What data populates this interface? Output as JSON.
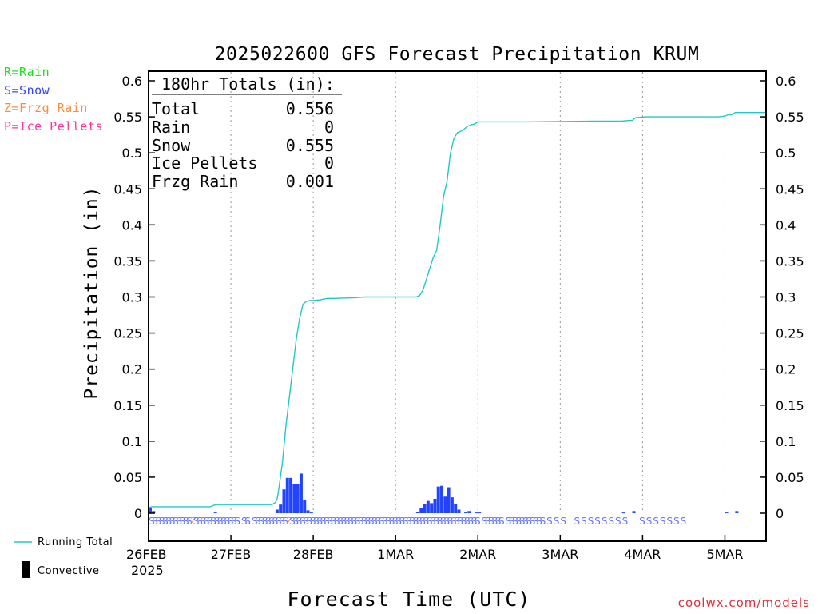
{
  "legend_types": [
    {
      "label": "R=Rain",
      "color": "#22dd22"
    },
    {
      "label": "S=Snow",
      "color": "#3344ff"
    },
    {
      "label": "Z=Frzg Rain",
      "color": "#ff8a3c"
    },
    {
      "label": "P=Ice Pellets",
      "color": "#ff3399"
    }
  ],
  "bottom_legend": {
    "running_total": "Running Total",
    "convective": "Convective"
  },
  "watermark": "coolwx.com/models",
  "totals": {
    "title": "180hr Totals (in):",
    "rows": [
      {
        "label": "Total",
        "value": "0.556"
      },
      {
        "label": "Rain",
        "value": "0"
      },
      {
        "label": "Snow",
        "value": "0.555"
      },
      {
        "label": "Ice Pellets",
        "value": "0"
      },
      {
        "label": "Frzg Rain",
        "value": "0.001"
      }
    ]
  },
  "colors": {
    "running_total": "#22c8c8",
    "snow_bar": "#2244ff",
    "convective": "#000000",
    "snow_marker": "#6677ff",
    "frzg_marker": "#ff8a3c"
  },
  "chart_data": {
    "type": "bar",
    "title": "2025022600 GFS Forecast Precipitation KRUM",
    "xlabel": "Forecast Time (UTC)",
    "ylabel": "Precipitation (in)",
    "ylim": [
      0,
      0.6
    ],
    "xlim": [
      0,
      180
    ],
    "y_ticks": [
      0,
      0.05,
      0.1,
      0.15,
      0.2,
      0.25,
      0.3,
      0.35,
      0.4,
      0.45,
      0.5,
      0.55,
      0.6
    ],
    "y_tick_labels": [
      "0",
      "0.05",
      "0.1",
      "0.15",
      "0.2",
      "0.25",
      "0.3",
      "0.35",
      "0.4",
      "0.45",
      "0.5",
      "0.55",
      "0.6"
    ],
    "x_ticks": [
      {
        "hour": 0,
        "label": "26FEB",
        "sublabel": "2025"
      },
      {
        "hour": 24,
        "label": "27FEB"
      },
      {
        "hour": 48,
        "label": "28FEB"
      },
      {
        "hour": 72,
        "label": "1MAR"
      },
      {
        "hour": 96,
        "label": "2MAR"
      },
      {
        "hour": 120,
        "label": "3MAR"
      },
      {
        "hour": 144,
        "label": "4MAR"
      },
      {
        "hour": 168,
        "label": "5MAR"
      }
    ],
    "grid": "vertical dotted at day boundaries",
    "running_total": {
      "name": "Running Total",
      "x": [
        0,
        1,
        18,
        19,
        20,
        36,
        37,
        37.5,
        38,
        39,
        40,
        41,
        42,
        43,
        44,
        45,
        46,
        47,
        48,
        50,
        52,
        54,
        60,
        63,
        72,
        78,
        79,
        80,
        81,
        82,
        83,
        84,
        85,
        86,
        87,
        88,
        89,
        90,
        91,
        92,
        93,
        94,
        95,
        96,
        98,
        110,
        130,
        135,
        138,
        140,
        141,
        142,
        145,
        150,
        155,
        162,
        166,
        168,
        169,
        170,
        171,
        175,
        180
      ],
      "y": [
        0.008,
        0.009,
        0.009,
        0.011,
        0.012,
        0.012,
        0.015,
        0.02,
        0.035,
        0.07,
        0.12,
        0.16,
        0.2,
        0.24,
        0.27,
        0.29,
        0.294,
        0.295,
        0.295,
        0.296,
        0.298,
        0.298,
        0.299,
        0.3,
        0.3,
        0.3,
        0.302,
        0.31,
        0.325,
        0.34,
        0.355,
        0.365,
        0.4,
        0.44,
        0.46,
        0.5,
        0.52,
        0.528,
        0.53,
        0.533,
        0.537,
        0.539,
        0.54,
        0.543,
        0.543,
        0.543,
        0.544,
        0.544,
        0.544,
        0.545,
        0.545,
        0.549,
        0.55,
        0.55,
        0.55,
        0.55,
        0.55,
        0.551,
        0.553,
        0.553,
        0.556,
        0.556,
        0.556
      ]
    },
    "bars": [
      {
        "hour": 0,
        "value": 0.007
      },
      {
        "hour": 1,
        "value": 0.003
      },
      {
        "hour": 19,
        "value": 0.001
      },
      {
        "hour": 37,
        "value": 0.005
      },
      {
        "hour": 38,
        "value": 0.012
      },
      {
        "hour": 39,
        "value": 0.033
      },
      {
        "hour": 40,
        "value": 0.049
      },
      {
        "hour": 41,
        "value": 0.049
      },
      {
        "hour": 42,
        "value": 0.04
      },
      {
        "hour": 43,
        "value": 0.041
      },
      {
        "hour": 44,
        "value": 0.055
      },
      {
        "hour": 45,
        "value": 0.018
      },
      {
        "hour": 46,
        "value": 0.004
      },
      {
        "hour": 47,
        "value": 0.001
      },
      {
        "hour": 78,
        "value": 0.002
      },
      {
        "hour": 79,
        "value": 0.007
      },
      {
        "hour": 80,
        "value": 0.013
      },
      {
        "hour": 81,
        "value": 0.017
      },
      {
        "hour": 82,
        "value": 0.014
      },
      {
        "hour": 83,
        "value": 0.02
      },
      {
        "hour": 84,
        "value": 0.037
      },
      {
        "hour": 85,
        "value": 0.038
      },
      {
        "hour": 86,
        "value": 0.023
      },
      {
        "hour": 87,
        "value": 0.036
      },
      {
        "hour": 88,
        "value": 0.022
      },
      {
        "hour": 89,
        "value": 0.013
      },
      {
        "hour": 90,
        "value": 0.005
      },
      {
        "hour": 92,
        "value": 0.002
      },
      {
        "hour": 93,
        "value": 0.003
      },
      {
        "hour": 95,
        "value": 0.001
      },
      {
        "hour": 96,
        "value": 0.001
      },
      {
        "hour": 138,
        "value": 0.001
      },
      {
        "hour": 141,
        "value": 0.003
      },
      {
        "hour": 168,
        "value": 0.001
      },
      {
        "hour": 171,
        "value": 0.003
      }
    ],
    "type_markers": {
      "text": "SSSSSSSSSSSSZSSSSSSSSSSSSS SS SSSSSSSSSSZSSSSSSSSSSSSSSSSSSSSSSSSSSSSSSSSSSSSSSSSSSSSSSSSSSSSSSS SSSSSS SSSSSSSSSSS S S S   S S S S S S S S    S S S S S S S",
      "start_hour": 0,
      "step_hours": 1
    }
  }
}
